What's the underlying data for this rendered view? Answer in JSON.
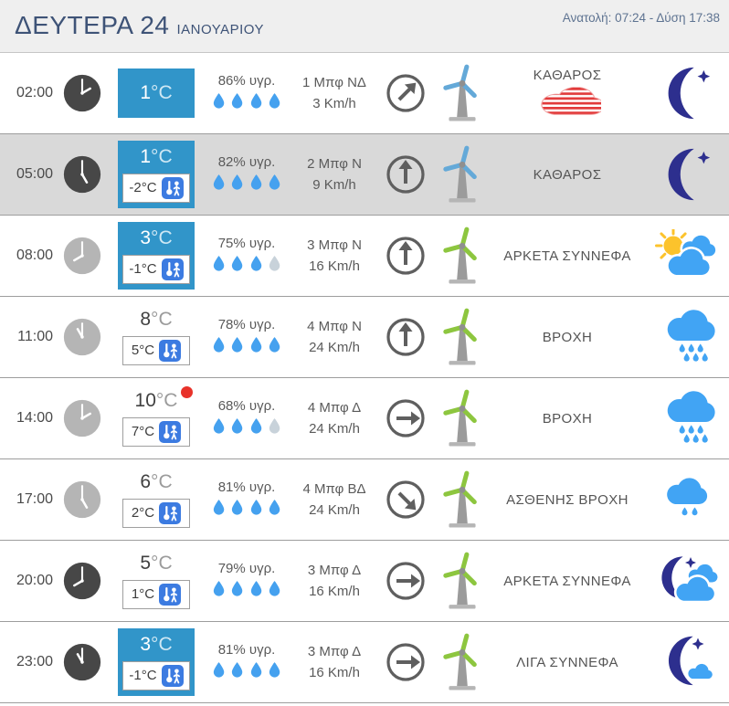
{
  "header": {
    "day_label": "ΔΕΥΤΕΡΑ 24",
    "month_label": "ΙΑΝΟΥΑΡΙΟΥ",
    "sun_times": "Ανατολή: 07:24 - Δύση 17:38"
  },
  "units": {
    "temp_unit": "°C"
  },
  "colors": {
    "accent_blue_box": "#3195c9",
    "feels_icon_blue": "#3c7be1",
    "drop_active": "#45a1ef",
    "drop_inactive": "#c8d2da",
    "turbine_blade_blue": "#64a9d8",
    "turbine_blade_green": "#8dc63f",
    "moon_navy": "#2d2f8e",
    "cloud_blue": "#41a4f4",
    "sun_yellow": "#fcc32c",
    "alert_red": "#e23b3b",
    "max_dot_red": "#e8322a",
    "night_clock": "#474747",
    "day_clock": "#b5b5b5"
  },
  "rows": [
    {
      "time": "02:00",
      "hour": 2,
      "night": true,
      "highlight": false,
      "blue_box": true,
      "temp": "1",
      "feels": null,
      "max_dot": false,
      "humidity": "86% υγρ.",
      "drops": [
        1,
        1,
        1,
        1
      ],
      "wind_line1": "1 Μπφ ΝΔ",
      "wind_line2": "3 Km/h",
      "wind_deg": 45,
      "turbine": "blue",
      "description": "ΚΑΘΑΡΟΣ",
      "alert": "frost-cloud",
      "weather_icon": "moon-star"
    },
    {
      "time": "05:00",
      "hour": 5,
      "night": true,
      "highlight": true,
      "blue_box": true,
      "temp": "1",
      "feels": "-2°C",
      "max_dot": false,
      "humidity": "82% υγρ.",
      "drops": [
        1,
        1,
        1,
        1
      ],
      "wind_line1": "2 Μπφ Ν",
      "wind_line2": "9 Km/h",
      "wind_deg": 0,
      "turbine": "blue",
      "description": "ΚΑΘΑΡΟΣ",
      "alert": null,
      "weather_icon": "moon-star"
    },
    {
      "time": "08:00",
      "hour": 8,
      "night": false,
      "highlight": false,
      "blue_box": true,
      "temp": "3",
      "feels": "-1°C",
      "max_dot": false,
      "humidity": "75% υγρ.",
      "drops": [
        1,
        1,
        1,
        0
      ],
      "wind_line1": "3 Μπφ Ν",
      "wind_line2": "16 Km/h",
      "wind_deg": 0,
      "turbine": "green",
      "description": "ΑΡΚΕΤΑ ΣΥΝΝΕΦΑ",
      "alert": null,
      "weather_icon": "sun-clouds"
    },
    {
      "time": "11:00",
      "hour": 11,
      "night": false,
      "highlight": false,
      "blue_box": false,
      "temp": "8",
      "feels": "5°C",
      "max_dot": false,
      "humidity": "78% υγρ.",
      "drops": [
        1,
        1,
        1,
        1
      ],
      "wind_line1": "4 Μπφ Ν",
      "wind_line2": "24 Km/h",
      "wind_deg": 0,
      "turbine": "green",
      "description": "ΒΡΟΧΗ",
      "alert": null,
      "weather_icon": "rain-heavy"
    },
    {
      "time": "14:00",
      "hour": 14,
      "night": false,
      "highlight": false,
      "blue_box": false,
      "temp": "10",
      "feels": "7°C",
      "max_dot": true,
      "humidity": "68% υγρ.",
      "drops": [
        1,
        1,
        1,
        0
      ],
      "wind_line1": "4 Μπφ Δ",
      "wind_line2": "24 Km/h",
      "wind_deg": 90,
      "turbine": "green",
      "description": "ΒΡΟΧΗ",
      "alert": null,
      "weather_icon": "rain-heavy"
    },
    {
      "time": "17:00",
      "hour": 17,
      "night": false,
      "highlight": false,
      "blue_box": false,
      "temp": "6",
      "feels": "2°C",
      "max_dot": false,
      "humidity": "81% υγρ.",
      "drops": [
        1,
        1,
        1,
        1
      ],
      "wind_line1": "4 Μπφ ΒΔ",
      "wind_line2": "24 Km/h",
      "wind_deg": 135,
      "turbine": "green",
      "description": "ΑΣΘΕΝΗΣ ΒΡΟΧΗ",
      "alert": null,
      "weather_icon": "rain-light"
    },
    {
      "time": "20:00",
      "hour": 20,
      "night": true,
      "highlight": false,
      "blue_box": false,
      "temp": "5",
      "feels": "1°C",
      "max_dot": false,
      "humidity": "79% υγρ.",
      "drops": [
        1,
        1,
        1,
        1
      ],
      "wind_line1": "3 Μπφ Δ",
      "wind_line2": "16 Km/h",
      "wind_deg": 90,
      "turbine": "green",
      "description": "ΑΡΚΕΤΑ ΣΥΝΝΕΦΑ",
      "alert": null,
      "weather_icon": "moon-clouds"
    },
    {
      "time": "23:00",
      "hour": 23,
      "night": true,
      "highlight": false,
      "blue_box": true,
      "temp": "3",
      "feels": "-1°C",
      "max_dot": false,
      "humidity": "81% υγρ.",
      "drops": [
        1,
        1,
        1,
        1
      ],
      "wind_line1": "3 Μπφ Δ",
      "wind_line2": "16 Km/h",
      "wind_deg": 90,
      "turbine": "green",
      "description": "ΛΙΓΑ ΣΥΝΝΕΦΑ",
      "alert": null,
      "weather_icon": "moon-cloud-small"
    }
  ]
}
